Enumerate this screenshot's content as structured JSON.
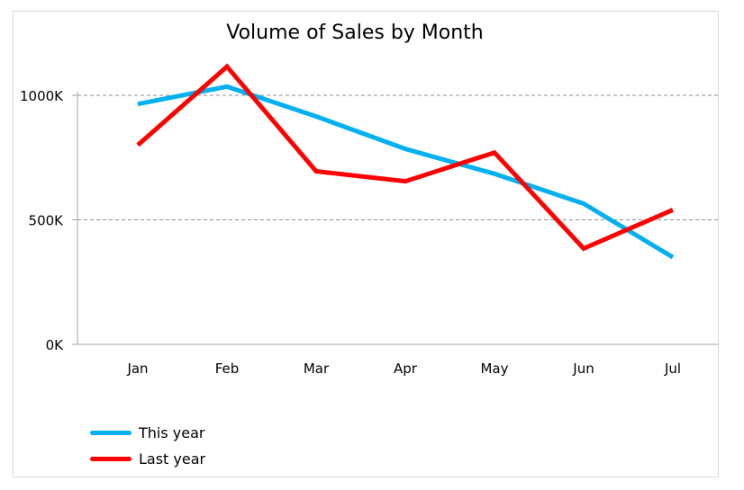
{
  "chart_data": {
    "type": "line",
    "title": "Volume of Sales by Month",
    "xlabel": "",
    "ylabel": "",
    "categories": [
      "Jan",
      "Feb",
      "Mar",
      "Apr",
      "May",
      "Jun",
      "Jul"
    ],
    "y_tick_labels": [
      "0K",
      "500K",
      "1000K"
    ],
    "y_tick_values": [
      0,
      500,
      1000
    ],
    "ylim": [
      0,
      1000
    ],
    "grid": "horizontal dashed",
    "legend_position": "bottom-left",
    "series": [
      {
        "name": "This year",
        "color": "#00b0f0",
        "values": [
          965,
          1035,
          915,
          785,
          685,
          565,
          350
        ]
      },
      {
        "name": "Last year",
        "color": "#ff0000",
        "values": [
          800,
          1115,
          695,
          655,
          770,
          385,
          540
        ]
      }
    ]
  }
}
